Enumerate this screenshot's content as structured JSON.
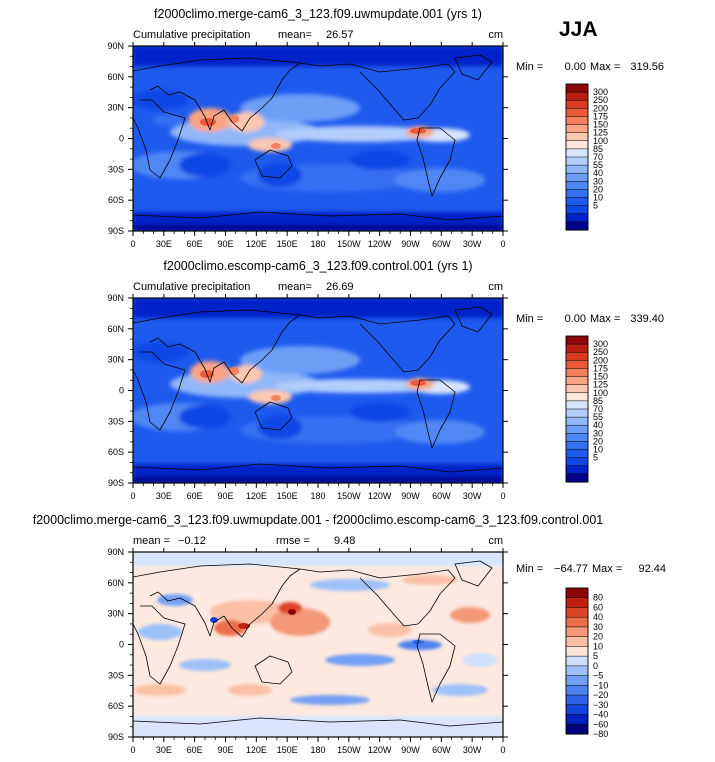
{
  "season": "JJA",
  "colors": {
    "precip_levels": [
      "#00008c",
      "#0022c8",
      "#0f46e6",
      "#1e5aee",
      "#3470f2",
      "#4f88f5",
      "#6d9ff7",
      "#8fb7f9",
      "#b3cefb",
      "#d8e5fd",
      "#fde6dc",
      "#fcc7b0",
      "#f8a485",
      "#f3805e",
      "#ea5a3a",
      "#d83a22",
      "#b81e12",
      "#8c0808"
    ],
    "diff_levels": [
      "#00007e",
      "#0020bd",
      "#1444db",
      "#2e62e8",
      "#4d81ef",
      "#73a0f4",
      "#9ec0f8",
      "#cfe0fc",
      "#fce4d8",
      "#f9c0a6",
      "#f39878",
      "#ea6e4c",
      "#dc4527",
      "#c02010",
      "#8c0606"
    ],
    "coast": "#000000"
  },
  "chart_data": [
    {
      "type": "heatmap",
      "title": "f2000climo.merge-cam6_3_123.f09.uwmupdate.001 (yrs 1)",
      "left_label": "Cumulative precipitation",
      "mean_label": "mean=",
      "mean": "26.57",
      "units": "cm",
      "min_label": "Min =",
      "min": "0.00",
      "max_label": "Max =",
      "max": "319.56",
      "xticks": [
        "0",
        "30E",
        "60E",
        "90E",
        "120E",
        "150E",
        "180",
        "150W",
        "120W",
        "90W",
        "60W",
        "30W",
        "0"
      ],
      "yticks": [
        "90N",
        "60N",
        "30N",
        "0",
        "30S",
        "60S",
        "90S"
      ],
      "levels": [
        "300",
        "250",
        "200",
        "175",
        "150",
        "125",
        "100",
        "85",
        "70",
        "55",
        "40",
        "30",
        "20",
        "10",
        "5"
      ]
    },
    {
      "type": "heatmap",
      "title": "f2000climo.escomp-cam6_3_123.f09.control.001 (yrs 1)",
      "left_label": "Cumulative precipitation",
      "mean_label": "mean=",
      "mean": "26.69",
      "units": "cm",
      "min_label": "Min =",
      "min": "0.00",
      "max_label": "Max =",
      "max": "339.40",
      "xticks": [
        "0",
        "30E",
        "60E",
        "90E",
        "120E",
        "150E",
        "180",
        "150W",
        "120W",
        "90W",
        "60W",
        "30W",
        "0"
      ],
      "yticks": [
        "90N",
        "60N",
        "30N",
        "0",
        "30S",
        "60S",
        "90S"
      ],
      "levels": [
        "300",
        "250",
        "200",
        "175",
        "150",
        "125",
        "100",
        "85",
        "70",
        "55",
        "40",
        "30",
        "20",
        "10",
        "5"
      ]
    },
    {
      "type": "heatmap",
      "title": "f2000climo.merge-cam6_3_123.f09.uwmupdate.001 - f2000climo.escomp-cam6_3_123.f09.control.001",
      "left_label": "",
      "mean_label": "mean =",
      "mean": "−0.12",
      "rmse_label": "rmse =",
      "rmse": "9.48",
      "units": "cm",
      "min_label": "Min =",
      "min": "−64.77",
      "max_label": "Max =",
      "max": "92.44",
      "xticks": [
        "0",
        "30E",
        "60E",
        "90E",
        "120E",
        "150E",
        "180",
        "150W",
        "120W",
        "90W",
        "60W",
        "30W",
        "0"
      ],
      "yticks": [
        "90N",
        "60N",
        "30N",
        "0",
        "30S",
        "60S",
        "90S"
      ],
      "levels": [
        "80",
        "60",
        "40",
        "30",
        "20",
        "10",
        "5",
        "0",
        "−5",
        "−10",
        "−20",
        "−30",
        "−40",
        "−60",
        "−80"
      ]
    }
  ]
}
